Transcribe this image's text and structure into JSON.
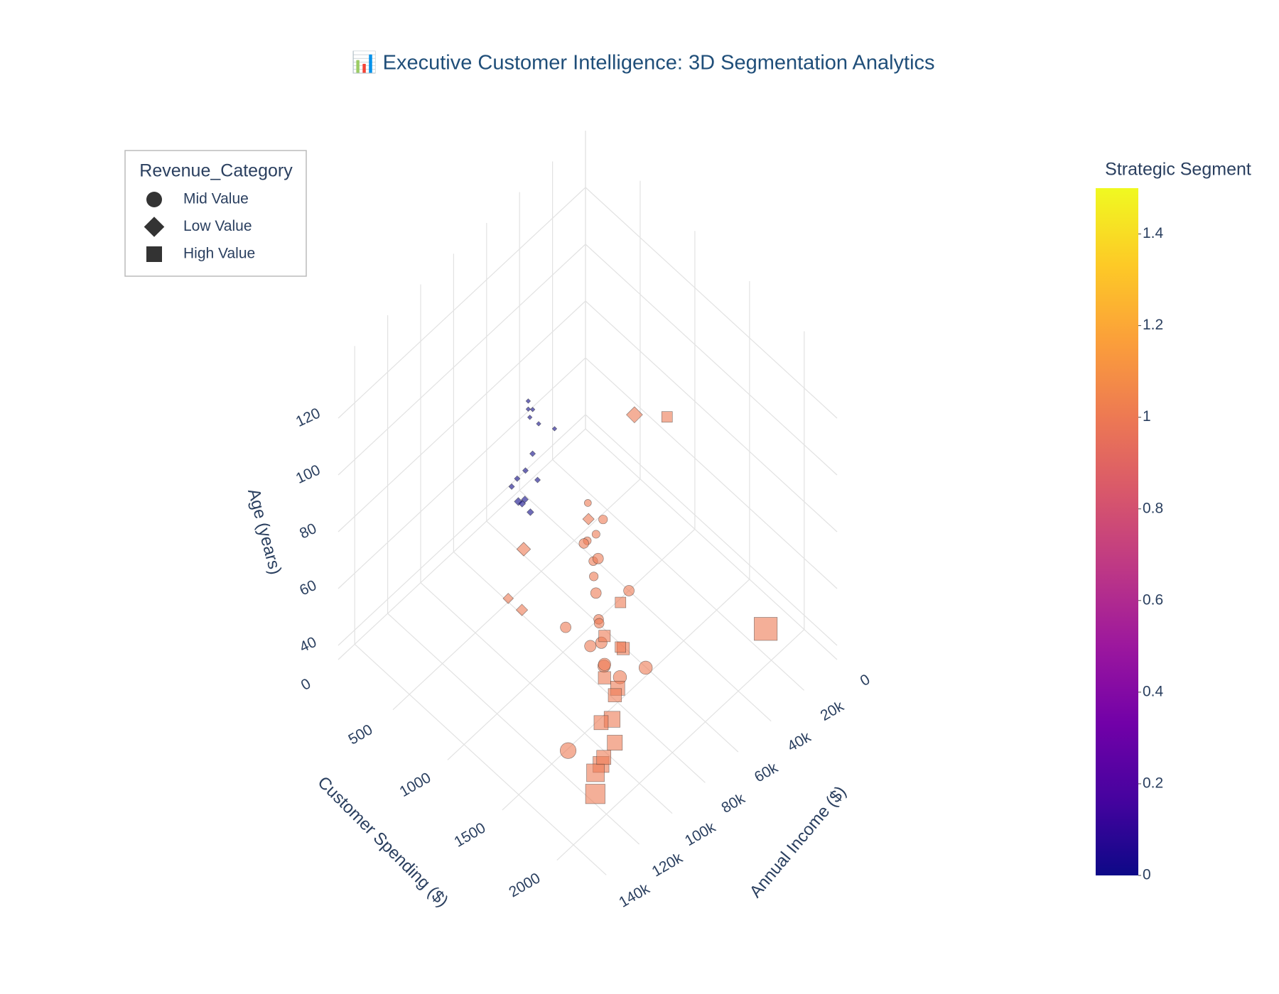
{
  "chart_data": {
    "type": "scatter3d",
    "title": "📊 Executive Customer Intelligence: 3D Segmentation Analytics",
    "xaxis_title": "Annual Income ($)",
    "yaxis_title": "Customer Spending ($)",
    "zaxis_title": "Age (years)",
    "xlim": [
      0,
      150000
    ],
    "xticks": [
      0,
      {
        "value": 20000,
        "label": "20k"
      },
      {
        "value": 40000,
        "label": "40k"
      },
      {
        "value": 60000,
        "label": "60k"
      },
      {
        "value": 80000,
        "label": "80k"
      },
      {
        "value": 100000,
        "label": "100k"
      },
      {
        "value": 120000,
        "label": "120k"
      },
      {
        "value": 140000,
        "label": "140k"
      }
    ],
    "ylim": [
      0,
      2300
    ],
    "yticks": [
      0,
      500,
      1000,
      1500,
      2000
    ],
    "zlim": [
      35,
      140
    ],
    "zticks": [
      40,
      60,
      80,
      100,
      120
    ],
    "grid": true,
    "opacity": 0.6,
    "legend": {
      "title": "Revenue_Category",
      "position": "top-left"
    },
    "colorbar": {
      "title": "Strategic Segment",
      "cmin": 0,
      "cmax": 1.5,
      "ticks": [
        0,
        0.2,
        0.4,
        0.6,
        0.8,
        1,
        1.2,
        1.4
      ],
      "colorscale": [
        "#0d0887",
        "#46039f",
        "#7201a8",
        "#9c179e",
        "#bd3786",
        "#d8576b",
        "#ed7953",
        "#fb9f3a",
        "#fdca26",
        "#f0f921"
      ]
    },
    "series": [
      {
        "name": "Mid Value",
        "symbol": "circle",
        "x": [
          55000,
          60000,
          65000,
          50000,
          70000,
          58000,
          75000,
          62000,
          68000,
          52000,
          80000,
          72000,
          45000,
          66000,
          78000,
          40000,
          120000,
          85000,
          57000,
          63000
        ],
        "y": [
          900,
          1000,
          1100,
          850,
          1200,
          950,
          1300,
          1050,
          1150,
          800,
          1250,
          1400,
          700,
          980,
          1350,
          1000,
          1650,
          1100,
          1020,
          1500
        ],
        "z": [
          50,
          45,
          42,
          55,
          40,
          48,
          38,
          60,
          44,
          52,
          46,
          36,
          58,
          65,
          42,
          35,
          45,
          50,
          70,
          38
        ],
        "segment": [
          1,
          1,
          1,
          1,
          1,
          1,
          1,
          1,
          1,
          1,
          1,
          1,
          1,
          1,
          1,
          1,
          1,
          1,
          1,
          1
        ],
        "size": [
          10,
          12,
          11,
          9,
          13,
          10,
          14,
          12,
          11,
          9,
          13,
          15,
          8,
          11,
          14,
          12,
          18,
          12,
          10,
          15
        ]
      },
      {
        "name": "Low Value",
        "symbol": "diamond",
        "x": [
          45000,
          52000,
          60000,
          48000,
          55000,
          40000,
          58000,
          65000,
          50000,
          62000,
          44000,
          56000,
          70000,
          47000,
          53000,
          38000,
          72000,
          85000,
          30000,
          90000
        ],
        "y": [
          250,
          300,
          350,
          200,
          280,
          320,
          260,
          400,
          230,
          310,
          180,
          340,
          380,
          270,
          290,
          600,
          520,
          700,
          900,
          650
        ],
        "z": [
          70,
          65,
          55,
          75,
          60,
          68,
          50,
          58,
          80,
          62,
          72,
          48,
          66,
          52,
          78,
          45,
          50,
          42,
          88,
          47
        ],
        "segment": [
          0,
          0,
          0,
          0,
          0,
          0,
          0,
          0,
          0,
          0,
          0,
          0,
          0,
          0,
          0,
          1,
          1,
          1,
          1,
          1
        ],
        "size": [
          4,
          5,
          6,
          4,
          5,
          4,
          7,
          6,
          4,
          5,
          4,
          6,
          5,
          5,
          4,
          10,
          12,
          10,
          14,
          9
        ]
      },
      {
        "name": "High Value",
        "symbol": "square",
        "x": [
          70000,
          80000,
          90000,
          75000,
          85000,
          95000,
          100000,
          65000,
          110000,
          88000,
          78000,
          120000,
          140000,
          30000,
          60000,
          105000
        ],
        "y": [
          1400,
          1500,
          1600,
          1450,
          1550,
          1700,
          1650,
          1300,
          1800,
          1500,
          1350,
          1900,
          2200,
          2100,
          1650,
          1750
        ],
        "z": [
          45,
          40,
          38,
          50,
          42,
          36,
          44,
          55,
          40,
          48,
          52,
          46,
          60,
          55,
          130,
          38
        ],
        "segment": [
          1,
          1,
          1,
          1,
          1,
          1,
          1,
          1,
          1,
          1,
          1,
          1,
          1,
          1,
          1,
          1
        ],
        "size": [
          14,
          16,
          18,
          12,
          15,
          17,
          16,
          12,
          18,
          14,
          13,
          20,
          22,
          26,
          12,
          16
        ]
      }
    ]
  }
}
